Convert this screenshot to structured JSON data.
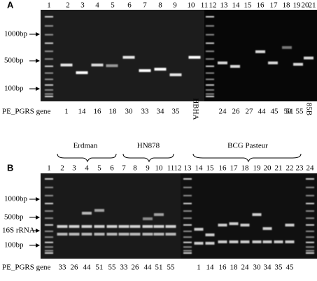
{
  "panel_a": {
    "label": "A",
    "lane_numbers": [
      1,
      2,
      3,
      4,
      5,
      6,
      7,
      8,
      9,
      10,
      11,
      12,
      13,
      14,
      15,
      16,
      17,
      18,
      19,
      20,
      21
    ],
    "markers": [
      "1000bp",
      "500bp",
      "100bp"
    ],
    "gene_label": "PE_PGRS gene",
    "genes": [
      1,
      14,
      16,
      18,
      30,
      33,
      34,
      35,
      "HBHA",
      24,
      26,
      27,
      44,
      45,
      50,
      51,
      55,
      "85B"
    ]
  },
  "panel_b": {
    "label": "B",
    "groups": [
      "Erdman",
      "HN878",
      "BCG Pasteur"
    ],
    "lane_numbers": [
      1,
      2,
      3,
      4,
      5,
      6,
      7,
      8,
      9,
      10,
      11,
      12,
      13,
      14,
      15,
      16,
      17,
      18,
      19,
      20,
      21,
      22,
      23,
      24
    ],
    "markers": [
      "1000bp",
      "500bp",
      "16S rRNA",
      "100bp"
    ],
    "gene_label": "PE_PGRS gene",
    "genes": [
      33,
      26,
      44,
      51,
      55,
      33,
      26,
      44,
      51,
      55,
      1,
      14,
      16,
      18,
      24,
      30,
      34,
      35,
      45
    ]
  }
}
